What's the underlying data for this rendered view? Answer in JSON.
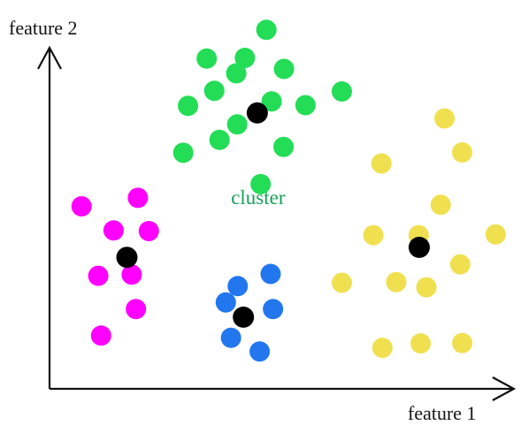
{
  "chart_data": {
    "type": "scatter",
    "xlabel": "feature 1",
    "ylabel": "feature 2",
    "xlim": [
      0,
      100
    ],
    "ylim": [
      0,
      100
    ],
    "grid": false,
    "annotations": [
      {
        "text": "cluster",
        "x": 38,
        "y": 50,
        "color": "#16a05a"
      }
    ],
    "series": [
      {
        "color": "#ff00ff",
        "points": [
          [
            6.7,
            49.4
          ],
          [
            18.5,
            51.7
          ],
          [
            13.4,
            42.9
          ],
          [
            20.8,
            42.7
          ],
          [
            10.2,
            30.6
          ],
          [
            17.2,
            30.9
          ],
          [
            18.1,
            21.6
          ],
          [
            10.8,
            14.4
          ]
        ]
      },
      {
        "color": "#2277ee",
        "points": [
          [
            39.4,
            27.8
          ],
          [
            46.3,
            31.1
          ],
          [
            36.9,
            23.4
          ],
          [
            46.8,
            21.6
          ],
          [
            38.0,
            13.8
          ],
          [
            44.0,
            10.1
          ]
        ]
      },
      {
        "color": "#22dd55",
        "points": [
          [
            45.4,
            97.2
          ],
          [
            32.9,
            89.4
          ],
          [
            40.9,
            89.6
          ],
          [
            49.1,
            86.6
          ],
          [
            39.1,
            85.4
          ],
          [
            34.5,
            80.7
          ],
          [
            29.0,
            76.6
          ],
          [
            46.5,
            77.8
          ],
          [
            53.6,
            76.8
          ],
          [
            61.2,
            80.5
          ],
          [
            39.3,
            71.6
          ],
          [
            35.6,
            67.4
          ],
          [
            49.0,
            65.5
          ],
          [
            28.0,
            63.9
          ],
          [
            44.2,
            55.4
          ]
        ]
      },
      {
        "color": "#f0e050",
        "points": [
          [
            82.7,
            73.2
          ],
          [
            86.4,
            64.0
          ],
          [
            69.5,
            61.0
          ],
          [
            81.9,
            49.8
          ],
          [
            67.8,
            41.6
          ],
          [
            77.3,
            41.6
          ],
          [
            93.4,
            41.8
          ],
          [
            86.0,
            33.7
          ],
          [
            61.2,
            28.7
          ],
          [
            72.6,
            28.9
          ],
          [
            78.9,
            27.5
          ],
          [
            69.7,
            11.1
          ],
          [
            77.7,
            12.3
          ],
          [
            86.4,
            12.4
          ]
        ]
      },
      {
        "color": "#000000",
        "role": "centroid",
        "points": [
          [
            16.2,
            35.6
          ],
          [
            43.5,
            74.7
          ],
          [
            40.6,
            19.4
          ],
          [
            77.4,
            38.3
          ]
        ]
      }
    ]
  }
}
